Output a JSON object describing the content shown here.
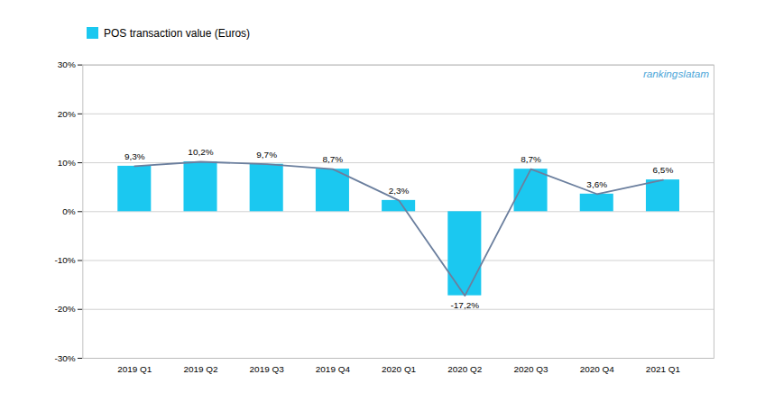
{
  "chart_data": {
    "type": "bar",
    "categories": [
      "2019 Q1",
      "2019 Q2",
      "2019 Q3",
      "2019 Q4",
      "2020 Q1",
      "2020 Q2",
      "2020 Q3",
      "2020 Q4",
      "2021 Q1"
    ],
    "series": [
      {
        "name": "POS transaction value (Euros)",
        "type": "bar",
        "color": "#1BC8F0",
        "values": [
          9.3,
          10.2,
          9.7,
          8.7,
          2.3,
          -17.2,
          8.7,
          3.6,
          6.5
        ],
        "value_labels": [
          "9,3%",
          "10,2%",
          "9,7%",
          "8,7%",
          "2,3%",
          "-17,2%",
          "8,7%",
          "3,6%",
          "6,5%"
        ]
      },
      {
        "type": "line",
        "color": "#6B7F9E",
        "values": [
          9.3,
          10.2,
          9.7,
          8.7,
          2.3,
          -17.2,
          8.7,
          3.6,
          6.5
        ]
      }
    ],
    "ylim": [
      -30,
      30
    ],
    "yticks": [
      {
        "value": -30,
        "label": "-30%"
      },
      {
        "value": -20,
        "label": "-20%"
      },
      {
        "value": -10,
        "label": "-10%"
      },
      {
        "value": 0,
        "label": "0%"
      },
      {
        "value": 10,
        "label": "10%"
      },
      {
        "value": 20,
        "label": "20%"
      },
      {
        "value": 30,
        "label": "30%"
      }
    ],
    "grid": true,
    "legend": "upper left",
    "data_labels": true,
    "annotations": [
      {
        "text": "rankingslatam",
        "color": "#4DA6D8"
      }
    ]
  }
}
